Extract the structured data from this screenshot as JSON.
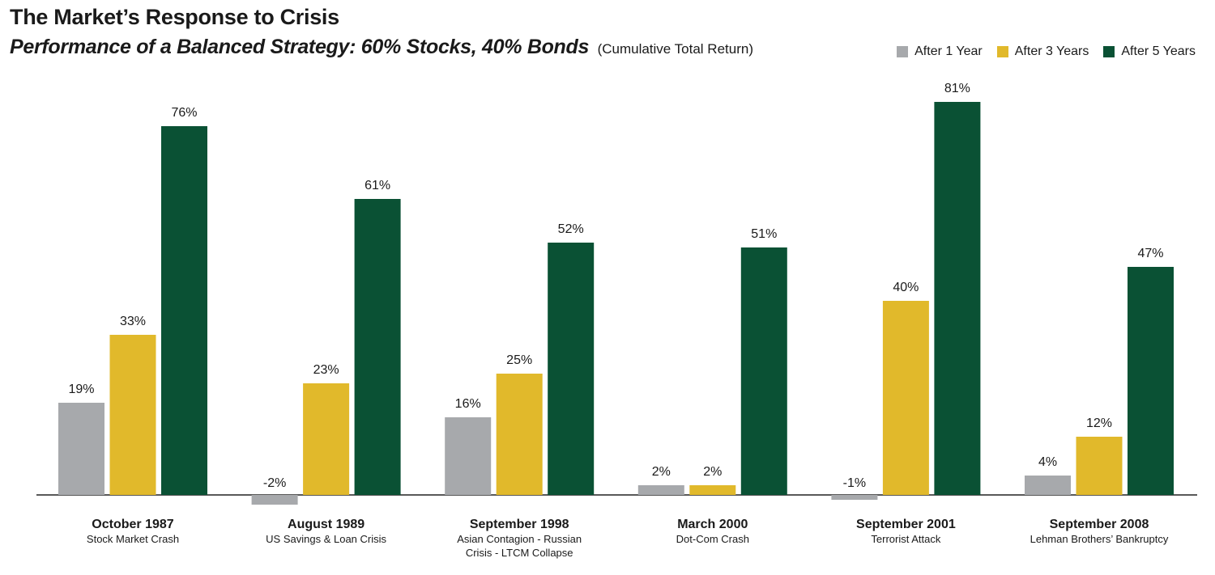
{
  "chart_data": {
    "type": "bar",
    "title": "The Market’s Response to Crisis",
    "subtitle": "Performance of a Balanced Strategy: 60% Stocks, 40% Bonds",
    "subtitle_note": "(Cumulative Total Return)",
    "categories": [
      {
        "label": "October 1987",
        "sublabel": "Stock Market Crash"
      },
      {
        "label": "August 1989",
        "sublabel": "US Savings & Loan Crisis"
      },
      {
        "label": "September 1998",
        "sublabel": "Asian Contagion - Russian Crisis - LTCM Collapse"
      },
      {
        "label": "March 2000",
        "sublabel": "Dot-Com Crash"
      },
      {
        "label": "September 2001",
        "sublabel": "Terrorist Attack"
      },
      {
        "label": "September 2008",
        "sublabel": "Lehman Brothers’ Bankruptcy"
      }
    ],
    "series": [
      {
        "name": "After 1 Year",
        "color": "#a7a9ac",
        "values": [
          19,
          -2,
          16,
          2,
          -1,
          4
        ],
        "labels": [
          "19%",
          "-2%",
          "16%",
          "2%",
          "-1%",
          "4%"
        ]
      },
      {
        "name": "After 3 Years",
        "color": "#e1b92b",
        "values": [
          33,
          23,
          25,
          2,
          40,
          12
        ],
        "labels": [
          "33%",
          "23%",
          "25%",
          "2%",
          "40%",
          "12%"
        ]
      },
      {
        "name": "After 5 Years",
        "color": "#0a5134",
        "values": [
          76,
          61,
          52,
          51,
          81,
          47
        ],
        "labels": [
          "76%",
          "61%",
          "52%",
          "51%",
          "81%",
          "47%"
        ]
      }
    ],
    "ylim": [
      -3,
      85
    ],
    "legend_position": "top-right",
    "grid": false
  }
}
